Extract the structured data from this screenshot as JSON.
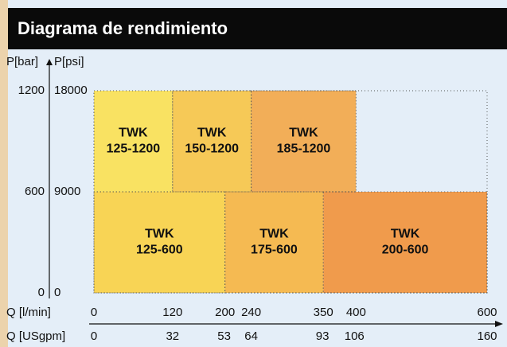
{
  "chart_data": {
    "type": "region",
    "title": "Diagrama de rendimiento",
    "ylabel": "P[bar]",
    "y2label": "P[psi]",
    "xlabel": "Q [l/min]",
    "x2label": "Q [USgpm]",
    "xlim": [
      0,
      600
    ],
    "xticks": [
      0,
      120,
      200,
      240,
      350,
      400,
      600
    ],
    "x2lim": [
      0,
      160
    ],
    "x2ticks": [
      0,
      32,
      53,
      64,
      93,
      106,
      160
    ],
    "ylim": [
      0,
      1200
    ],
    "yticks": [
      0,
      600,
      1200
    ],
    "y2lim": [
      0,
      18000
    ],
    "y2ticks": [
      0,
      9000,
      18000
    ],
    "regions": [
      {
        "label": [
          "TWK",
          "125-1200"
        ],
        "x": [
          0,
          120
        ],
        "y": [
          600,
          1200
        ],
        "color": "#f9e262"
      },
      {
        "label": [
          "TWK",
          "150-1200"
        ],
        "x": [
          120,
          240
        ],
        "y": [
          600,
          1200
        ],
        "color": "#f6c957"
      },
      {
        "label": [
          "TWK",
          "185-1200"
        ],
        "x": [
          240,
          400
        ],
        "y": [
          600,
          1200
        ],
        "color": "#f2ae58"
      },
      {
        "label": [
          "TWK",
          "125-600"
        ],
        "x": [
          0,
          200
        ],
        "y": [
          0,
          600
        ],
        "color": "#f8d455"
      },
      {
        "label": [
          "TWK",
          "175-600"
        ],
        "x": [
          200,
          350
        ],
        "y": [
          0,
          600
        ],
        "color": "#f5ba52"
      },
      {
        "label": [
          "TWK",
          "200-600"
        ],
        "x": [
          350,
          600
        ],
        "y": [
          0,
          600
        ],
        "color": "#f09b4c"
      }
    ]
  }
}
